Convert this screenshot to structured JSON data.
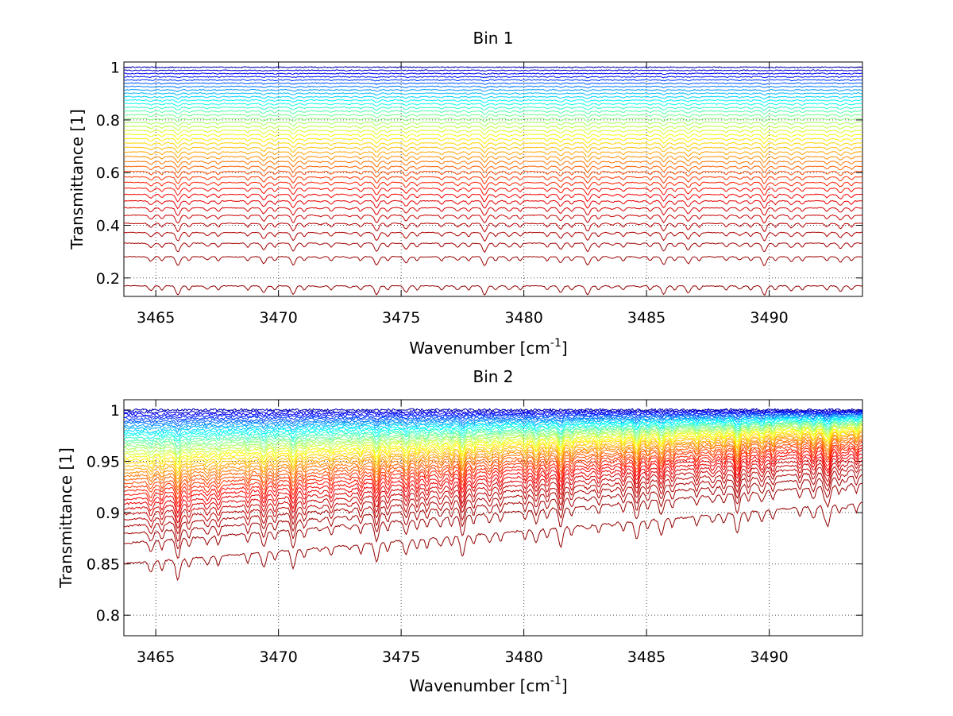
{
  "chart_data": [
    {
      "type": "line",
      "title": "Bin 1",
      "xlabel_main": "Wavenumber [cm",
      "xlabel_sup": "-1",
      "xlabel_end": "]",
      "ylabel": "Transmittance [1]",
      "xlim": [
        3463.7,
        3493.8
      ],
      "ylim": [
        0.13,
        1.02
      ],
      "xticks": [
        3465,
        3470,
        3475,
        3480,
        3485,
        3490
      ],
      "xtick_labels": [
        "3465",
        "3470",
        "3475",
        "3480",
        "3485",
        "3490"
      ],
      "yticks": [
        0.2,
        0.4,
        0.6,
        0.8,
        1.0
      ],
      "ytick_labels": [
        "0.2",
        "0.4",
        "0.6",
        "0.8",
        "1"
      ],
      "grid": true,
      "colormap": "jet",
      "series_count": 40,
      "series_baseline_low": 0.17,
      "series_baseline_high": 1.0,
      "absorption_lines_x": [
        3464.8,
        3465.9,
        3467.1,
        3468.3,
        3469.4,
        3470.6,
        3471.7,
        3472.9,
        3474.0,
        3475.2,
        3476.2,
        3477.3,
        3478.4,
        3479.4,
        3480.5,
        3481.5,
        3482.6,
        3483.6,
        3484.7,
        3485.7,
        3486.7,
        3487.8,
        3488.8,
        3489.8,
        3490.9,
        3491.9,
        3492.9
      ]
    },
    {
      "type": "line",
      "title": "Bin 2",
      "xlabel_main": "Wavenumber [cm",
      "xlabel_sup": "-1",
      "xlabel_end": "]",
      "ylabel": "Transmittance [1]",
      "xlim": [
        3463.7,
        3493.8
      ],
      "ylim": [
        0.78,
        1.01
      ],
      "xticks": [
        3465,
        3470,
        3475,
        3480,
        3485,
        3490
      ],
      "xtick_labels": [
        "3465",
        "3470",
        "3475",
        "3480",
        "3485",
        "3490"
      ],
      "yticks": [
        0.8,
        0.85,
        0.9,
        0.95,
        1.0
      ],
      "ytick_labels": [
        "0.8",
        "0.85",
        "0.9",
        "0.95",
        "1"
      ],
      "grid": true,
      "colormap": "jet",
      "series_count": 40,
      "series_baseline_low": 0.85,
      "series_baseline_high": 1.0,
      "absorption_lines_x": [
        3464.8,
        3465.9,
        3467.1,
        3468.3,
        3469.4,
        3470.6,
        3471.7,
        3472.9,
        3474.0,
        3475.2,
        3475.6,
        3476.6,
        3477.5,
        3478.6,
        3479.6,
        3480.5,
        3481.5,
        3482.6,
        3483.6,
        3484.6,
        3485.6,
        3486.6,
        3487.7,
        3488.7,
        3489.7,
        3490.8,
        3491.8,
        3492.4,
        3493.1
      ]
    }
  ]
}
